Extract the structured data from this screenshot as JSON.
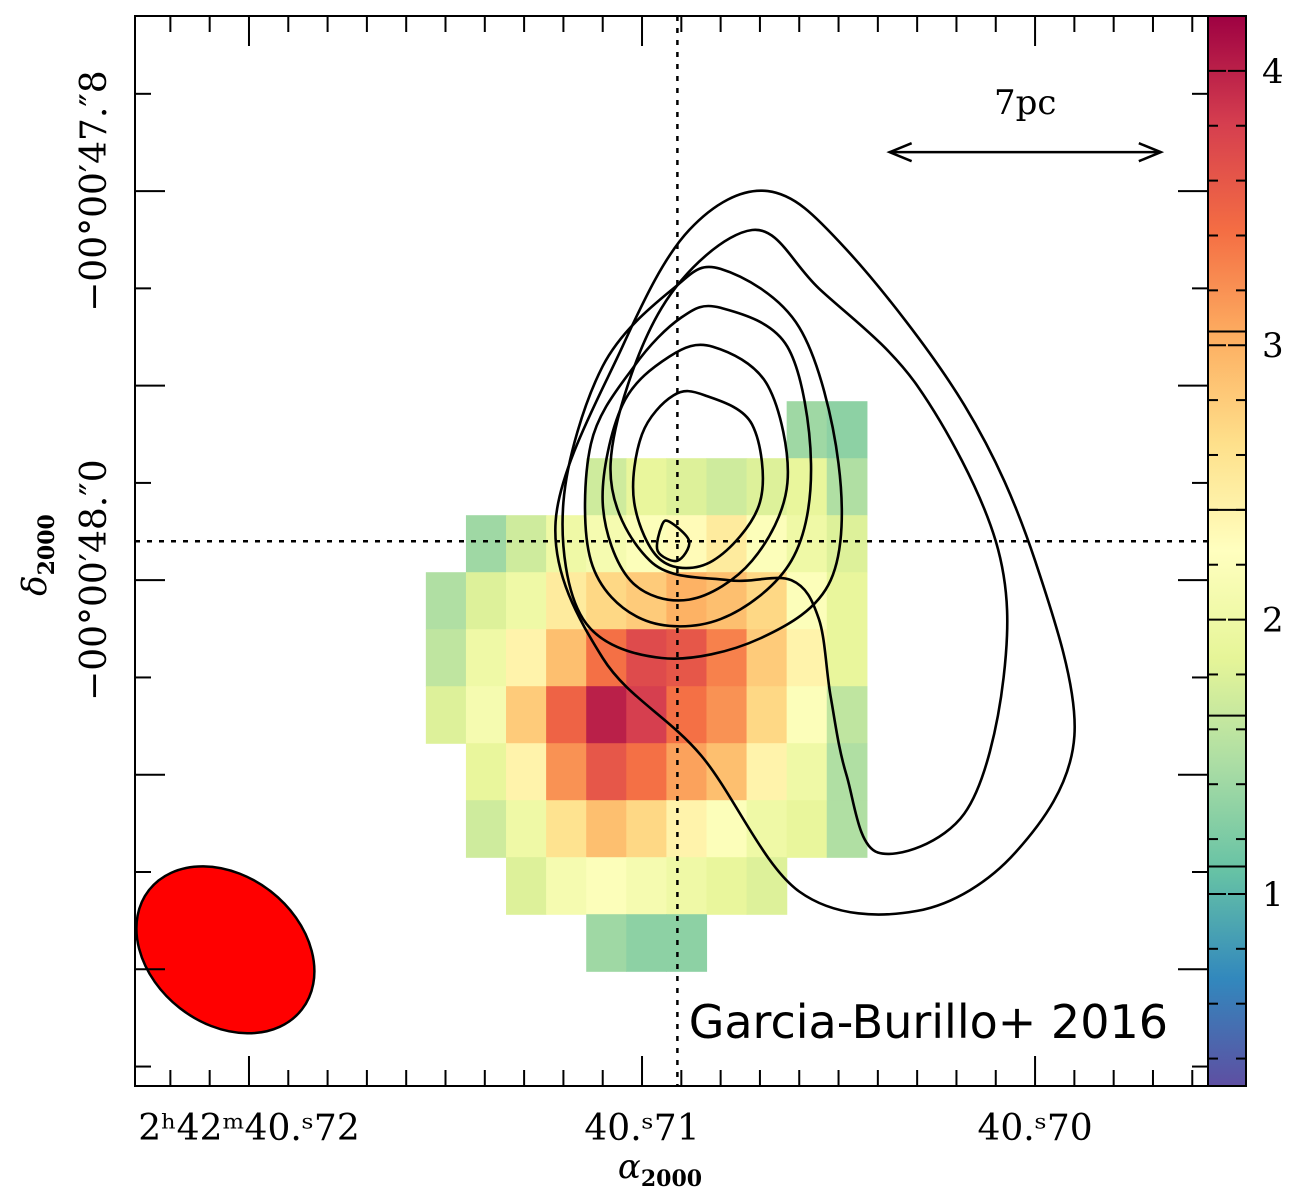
{
  "chart_data": {
    "type": "heatmap",
    "xlabel": "α",
    "xlabel_sub": "2000",
    "ylabel": "δ",
    "ylabel_sub": "2000",
    "x_ticks": [
      {
        "label": "2ʰ42ᵐ40.ˢ72",
        "value": 40.72
      },
      {
        "label": "40.ˢ71",
        "value": 40.71
      },
      {
        "label": "40.ˢ70",
        "value": 40.7
      }
    ],
    "y_ticks": [
      {
        "label": "−00°00′47.″8",
        "value": -47.8
      },
      {
        "label": "−00°00′48.″0",
        "value": -48.0
      }
    ],
    "xlim": [
      40.7229,
      40.6956
    ],
    "ylim": [
      -48.26,
      -47.71
    ],
    "colorbar": {
      "ticks": [
        1,
        2,
        3,
        4
      ],
      "range": [
        0.3,
        4.2
      ],
      "contour_marks": [
        1.1,
        1.65,
        2.4,
        3.05
      ]
    },
    "crosshair": {
      "ra": 40.7091,
      "dec": -47.98
    },
    "scale_bar": {
      "label": "7pc",
      "ra_from": 40.7037,
      "ra_to": 40.6968,
      "dec": -47.78
    },
    "beam": {
      "ra": 40.7206,
      "dec": -48.19,
      "color": "#ff0000"
    },
    "annotation": "Garcia-Burillo+ 2016",
    "pixels": {
      "ra0": 40.7155,
      "dra": -0.00102,
      "dec0": -47.908,
      "ddec": -0.0293,
      "rows": [
        [
          null,
          null,
          null,
          null,
          null,
          null,
          null,
          null,
          null,
          1.4,
          1.3,
          null
        ],
        [
          null,
          null,
          null,
          null,
          1.7,
          1.9,
          1.8,
          1.7,
          1.8,
          1.9,
          1.5,
          null
        ],
        [
          null,
          1.4,
          1.7,
          2.0,
          2.1,
          2.2,
          2.3,
          2.5,
          2.2,
          2.0,
          1.8,
          null
        ],
        [
          1.5,
          1.8,
          2.0,
          2.5,
          2.7,
          2.8,
          3.0,
          2.9,
          2.7,
          2.2,
          1.9,
          null
        ],
        [
          1.6,
          2.0,
          2.4,
          2.9,
          3.4,
          3.7,
          3.6,
          3.3,
          2.8,
          2.4,
          1.9,
          null
        ],
        [
          1.8,
          2.1,
          2.8,
          3.5,
          4.0,
          3.8,
          3.4,
          3.2,
          2.7,
          2.2,
          1.6,
          null
        ],
        [
          null,
          1.9,
          2.4,
          3.2,
          3.6,
          3.4,
          3.1,
          2.9,
          2.4,
          2.0,
          1.5,
          null
        ],
        [
          null,
          1.7,
          2.0,
          2.6,
          2.9,
          2.7,
          2.4,
          2.2,
          2.0,
          1.9,
          1.5,
          null
        ],
        [
          null,
          null,
          1.8,
          2.1,
          2.2,
          2.1,
          2.0,
          1.9,
          1.8,
          null,
          null,
          null
        ],
        [
          null,
          null,
          null,
          null,
          1.4,
          1.3,
          1.3,
          null,
          null,
          null,
          null,
          null
        ]
      ]
    },
    "contours": [
      [
        [
          40.7068,
          -47.8
        ],
        [
          40.7048,
          -47.83
        ],
        [
          40.7018,
          -47.91
        ],
        [
          40.7,
          -47.99
        ],
        [
          40.699,
          -48.08
        ],
        [
          40.7005,
          -48.14
        ],
        [
          40.703,
          -48.17
        ],
        [
          40.706,
          -48.16
        ],
        [
          40.7085,
          -48.09
        ],
        [
          40.711,
          -48.04
        ],
        [
          40.7122,
          -47.97
        ],
        [
          40.7105,
          -47.88
        ],
        [
          40.7088,
          -47.82
        ],
        [
          40.7068,
          -47.8
        ]
      ],
      [
        [
          40.7072,
          -47.82
        ],
        [
          40.7055,
          -47.85
        ],
        [
          40.703,
          -47.9
        ],
        [
          40.701,
          -47.98
        ],
        [
          40.7008,
          -48.05
        ],
        [
          40.7018,
          -48.12
        ],
        [
          40.704,
          -48.14
        ],
        [
          40.7048,
          -48.1
        ],
        [
          40.7052,
          -48.06
        ],
        [
          40.7055,
          -48.02
        ],
        [
          40.7062,
          -48.0
        ],
        [
          40.7078,
          -48.0
        ],
        [
          40.7098,
          -47.99
        ],
        [
          40.7108,
          -47.94
        ],
        [
          40.7095,
          -47.86
        ],
        [
          40.7072,
          -47.82
        ]
      ],
      [
        [
          40.708,
          -47.84
        ],
        [
          40.706,
          -47.87
        ],
        [
          40.705,
          -47.94
        ],
        [
          40.7052,
          -48.0
        ],
        [
          40.707,
          -48.03
        ],
        [
          40.7095,
          -48.04
        ],
        [
          40.7115,
          -48.02
        ],
        [
          40.712,
          -47.96
        ],
        [
          40.711,
          -47.89
        ],
        [
          40.7092,
          -47.85
        ],
        [
          40.708,
          -47.84
        ]
      ],
      [
        [
          40.708,
          -47.86
        ],
        [
          40.7063,
          -47.88
        ],
        [
          40.7057,
          -47.94
        ],
        [
          40.7062,
          -47.99
        ],
        [
          40.708,
          -48.02
        ],
        [
          40.71,
          -48.02
        ],
        [
          40.7113,
          -47.99
        ],
        [
          40.7113,
          -47.93
        ],
        [
          40.7102,
          -47.89
        ],
        [
          40.709,
          -47.865
        ],
        [
          40.708,
          -47.86
        ]
      ],
      [
        [
          40.7082,
          -47.88
        ],
        [
          40.7068,
          -47.9
        ],
        [
          40.7063,
          -47.95
        ],
        [
          40.7072,
          -47.99
        ],
        [
          40.7088,
          -48.01
        ],
        [
          40.7103,
          -48.0
        ],
        [
          40.711,
          -47.96
        ],
        [
          40.7105,
          -47.91
        ],
        [
          40.7093,
          -47.885
        ],
        [
          40.7082,
          -47.88
        ]
      ],
      [
        [
          40.7084,
          -47.905
        ],
        [
          40.7072,
          -47.92
        ],
        [
          40.707,
          -47.96
        ],
        [
          40.7082,
          -47.99
        ],
        [
          40.7095,
          -47.99
        ],
        [
          40.7102,
          -47.96
        ],
        [
          40.71,
          -47.925
        ],
        [
          40.7092,
          -47.905
        ],
        [
          40.7084,
          -47.905
        ]
      ],
      [
        [
          40.7093,
          -47.97
        ],
        [
          40.7088,
          -47.98
        ],
        [
          40.7091,
          -47.99
        ],
        [
          40.7096,
          -47.985
        ],
        [
          40.7095,
          -47.972
        ],
        [
          40.7093,
          -47.97
        ]
      ]
    ]
  }
}
